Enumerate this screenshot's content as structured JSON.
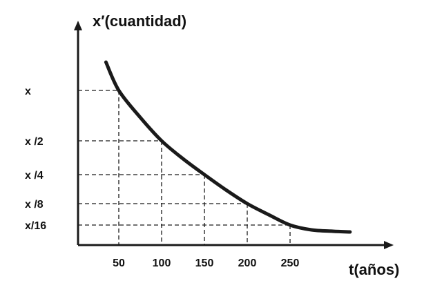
{
  "chart_data": {
    "type": "line",
    "title": "",
    "ylabel": "x′(cuantidad)",
    "xlabel": "t(años)",
    "x_ticks": [
      "50",
      "100",
      "150",
      "200",
      "250"
    ],
    "x_tick_values": [
      50,
      100,
      150,
      200,
      250
    ],
    "y_ticks": [
      "x",
      "x /2",
      "x /4",
      "x /8",
      "x/16"
    ],
    "y_tick_values": [
      1,
      0.5,
      0.25,
      0.125,
      0.0625
    ],
    "grid": "dashed guide lines from each y tick to the curve point at the matching x tick",
    "series": [
      {
        "x": [
          35,
          50,
          75,
          100,
          125,
          150,
          175,
          200,
          225,
          250,
          275,
          300,
          320
        ],
        "y": [
          1.32,
          1.0,
          0.72,
          0.5,
          0.36,
          0.25,
          0.18,
          0.125,
          0.09,
          0.0625,
          0.045,
          0.04,
          0.038
        ]
      }
    ],
    "colors": {
      "curve": "#1a1a1a",
      "axes": "#1a1a1a",
      "guides": "#1a1a1a"
    }
  }
}
